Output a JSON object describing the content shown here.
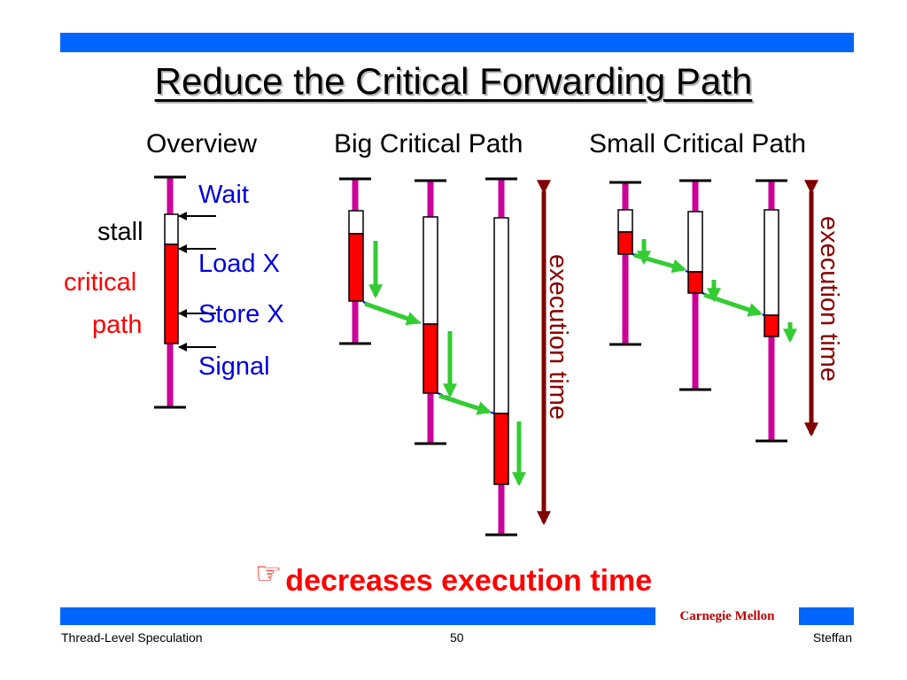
{
  "slide": {
    "title": "Reduce the Critical Forwarding Path",
    "headers": {
      "overview": "Overview",
      "big": "Big Critical Path",
      "small": "Small Critical Path"
    },
    "overview_labels": {
      "stall": "stall",
      "critical": "critical",
      "path": "path",
      "wait": "Wait",
      "load": "Load X",
      "store": "Store X",
      "signal": "Signal"
    },
    "execution_time": "execution time",
    "conclusion": "decreases execution time",
    "hand_icon": "☞",
    "brand": "Carnegie Mellon",
    "footer_left": "Thread-Level Speculation",
    "page_number": "50",
    "footer_right": "Steffan"
  },
  "colors": {
    "accent_bar": "#0066ff",
    "thread_line": "#cc0099",
    "critical": "#ff0000",
    "forward_arrow": "#33cc33",
    "wait_link": "#0000cc",
    "time_arrow": "#800000",
    "label_blue": "#0000e0"
  }
}
